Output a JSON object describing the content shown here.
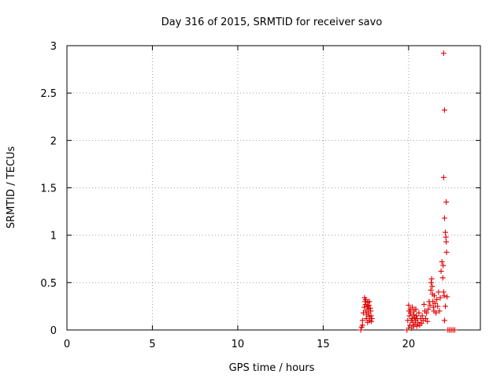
{
  "chart_data": {
    "type": "scatter",
    "title": "Day 316 of 2015, SRMTID for receiver savo",
    "xlabel": "GPS time / hours",
    "ylabel": "SRMTID / TECUs",
    "xlim": [
      0,
      24.2
    ],
    "ylim": [
      0,
      3
    ],
    "xticks": [
      0,
      5,
      10,
      15,
      20
    ],
    "xtick_labels": [
      "0",
      "5",
      "10",
      "15",
      "20"
    ],
    "yticks": [
      0,
      0.5,
      1,
      1.5,
      2,
      2.5,
      3
    ],
    "ytick_labels": [
      "0",
      "0.5",
      "1",
      "1.5",
      "2",
      "2.5",
      "3"
    ],
    "grid": true,
    "marker": "+",
    "series": [
      {
        "name": "SRMTID",
        "color": "#e00000",
        "points": [
          [
            17.2,
            0.0
          ],
          [
            17.25,
            0.03
          ],
          [
            17.3,
            0.1
          ],
          [
            17.35,
            0.18
          ],
          [
            17.4,
            0.24
          ],
          [
            17.42,
            0.34
          ],
          [
            17.45,
            0.3
          ],
          [
            17.48,
            0.27
          ],
          [
            17.5,
            0.2
          ],
          [
            17.52,
            0.12
          ],
          [
            17.55,
            0.16
          ],
          [
            17.58,
            0.25
          ],
          [
            17.6,
            0.29
          ],
          [
            17.62,
            0.22
          ],
          [
            17.65,
            0.18
          ],
          [
            17.68,
            0.26
          ],
          [
            17.7,
            0.14
          ],
          [
            17.72,
            0.1
          ],
          [
            17.75,
            0.23
          ],
          [
            17.78,
            0.2
          ],
          [
            17.8,
            0.15
          ],
          [
            17.82,
            0.09
          ],
          [
            17.85,
            0.12
          ],
          [
            17.3,
            0.05
          ],
          [
            17.5,
            0.32
          ],
          [
            17.6,
            0.08
          ],
          [
            17.7,
            0.3
          ],
          [
            19.9,
            0.0
          ],
          [
            19.95,
            0.1
          ],
          [
            20.0,
            0.26
          ],
          [
            20.03,
            0.2
          ],
          [
            20.05,
            0.15
          ],
          [
            20.08,
            0.05
          ],
          [
            20.1,
            0.22
          ],
          [
            20.12,
            0.18
          ],
          [
            20.15,
            0.1
          ],
          [
            20.18,
            0.02
          ],
          [
            20.2,
            0.12
          ],
          [
            20.22,
            0.24
          ],
          [
            20.25,
            0.08
          ],
          [
            20.28,
            0.16
          ],
          [
            20.3,
            0.04
          ],
          [
            20.32,
            0.2
          ],
          [
            20.35,
            0.13
          ],
          [
            20.38,
            0.06
          ],
          [
            20.4,
            0.1
          ],
          [
            20.42,
            0.22
          ],
          [
            20.45,
            0.15
          ],
          [
            20.48,
            0.04
          ],
          [
            20.5,
            0.12
          ],
          [
            20.55,
            0.08
          ],
          [
            20.6,
            0.18
          ],
          [
            20.65,
            0.05
          ],
          [
            20.7,
            0.12
          ],
          [
            20.75,
            0.07
          ],
          [
            20.8,
            0.15
          ],
          [
            20.85,
            0.1
          ],
          [
            20.9,
            0.27
          ],
          [
            20.95,
            0.2
          ],
          [
            21.0,
            0.12
          ],
          [
            21.05,
            0.18
          ],
          [
            21.1,
            0.09
          ],
          [
            21.15,
            0.22
          ],
          [
            21.2,
            0.3
          ],
          [
            21.25,
            0.26
          ],
          [
            21.3,
            0.42
          ],
          [
            21.32,
            0.5
          ],
          [
            21.35,
            0.54
          ],
          [
            21.38,
            0.46
          ],
          [
            21.4,
            0.38
          ],
          [
            21.42,
            0.3
          ],
          [
            21.45,
            0.24
          ],
          [
            21.48,
            0.2
          ],
          [
            21.5,
            0.36
          ],
          [
            21.55,
            0.28
          ],
          [
            21.6,
            0.18
          ],
          [
            21.65,
            0.32
          ],
          [
            21.7,
            0.25
          ],
          [
            21.75,
            0.4
          ],
          [
            21.8,
            0.2
          ],
          [
            21.85,
            0.34
          ],
          [
            21.9,
            0.62
          ],
          [
            21.95,
            0.72
          ],
          [
            22.0,
            0.55
          ],
          [
            22.02,
            0.68
          ],
          [
            22.05,
            0.4
          ],
          [
            22.08,
            0.36
          ],
          [
            22.05,
            2.92
          ],
          [
            22.1,
            2.32
          ],
          [
            22.05,
            1.61
          ],
          [
            22.1,
            1.18
          ],
          [
            22.2,
            1.35
          ],
          [
            22.15,
            1.03
          ],
          [
            22.18,
            0.98
          ],
          [
            22.2,
            0.93
          ],
          [
            22.22,
            0.82
          ],
          [
            22.1,
            0.1
          ],
          [
            22.15,
            0.25
          ],
          [
            22.25,
            0.35
          ],
          [
            22.3,
            0.0
          ],
          [
            22.4,
            0.0
          ],
          [
            22.5,
            0.0
          ],
          [
            22.6,
            0.0
          ],
          [
            22.7,
            0.0
          ]
        ]
      }
    ]
  }
}
